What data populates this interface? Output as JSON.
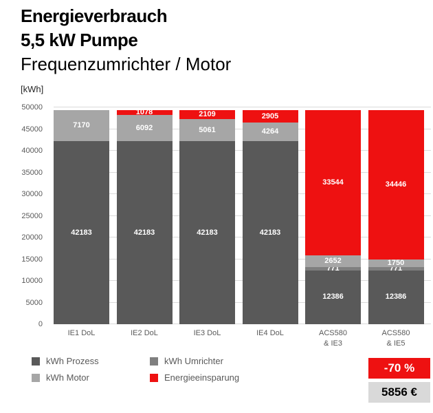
{
  "header": {
    "title_line1": "Energieverbrauch",
    "title_line2": "5,5 kW Pumpe",
    "subtitle": "Frequenzumrichter / Motor",
    "axis_unit": "[kWh]"
  },
  "colors": {
    "prozess": "#595959",
    "umrichter": "#7f7f7f",
    "motor": "#a6a6a6",
    "einsparung": "#ee1111",
    "gridline": "#d9d9d9",
    "axis_text": "#595959",
    "badge_gray_bg": "#d9d9d9"
  },
  "chart_data": {
    "type": "bar",
    "stacked": true,
    "title": "Energieverbrauch 5,5 kW Pumpe",
    "subtitle": "Frequenzumrichter / Motor",
    "ylabel": "[kWh]",
    "ylim": [
      0,
      50000
    ],
    "yticks": [
      0,
      5000,
      10000,
      15000,
      20000,
      25000,
      30000,
      35000,
      40000,
      45000,
      50000
    ],
    "grid": true,
    "legend_position": "bottom-left",
    "categories": [
      "IE1 DoL",
      "IE2 DoL",
      "IE3 DoL",
      "IE4 DoL",
      "ACS580\n& IE3",
      "ACS580\n& IE5"
    ],
    "series": [
      {
        "name": "kWh Prozess",
        "key": "prozess",
        "values": [
          42183,
          42183,
          42183,
          42183,
          12386,
          12386
        ]
      },
      {
        "name": "kWh Umrichter",
        "key": "umrichter",
        "values": [
          0,
          0,
          0,
          0,
          771,
          771
        ]
      },
      {
        "name": "kWh Motor",
        "key": "motor",
        "values": [
          7170,
          6092,
          5061,
          4264,
          2652,
          1750
        ]
      },
      {
        "name": "Energieeinsparung",
        "key": "einsparung",
        "values": [
          0,
          1078,
          2109,
          2905,
          33544,
          34446
        ]
      }
    ],
    "bar_total": 49353,
    "annotations": [
      "-70 %",
      "5856 €"
    ]
  },
  "legend": {
    "items": [
      {
        "label": "kWh Prozess",
        "key": "prozess"
      },
      {
        "label": "kWh Umrichter",
        "key": "umrichter"
      },
      {
        "label": "kWh Motor",
        "key": "motor"
      },
      {
        "label": "Energieeinsparung",
        "key": "einsparung"
      }
    ]
  },
  "badges": {
    "savings_percent": "-70 %",
    "savings_euro": "5856 €"
  }
}
